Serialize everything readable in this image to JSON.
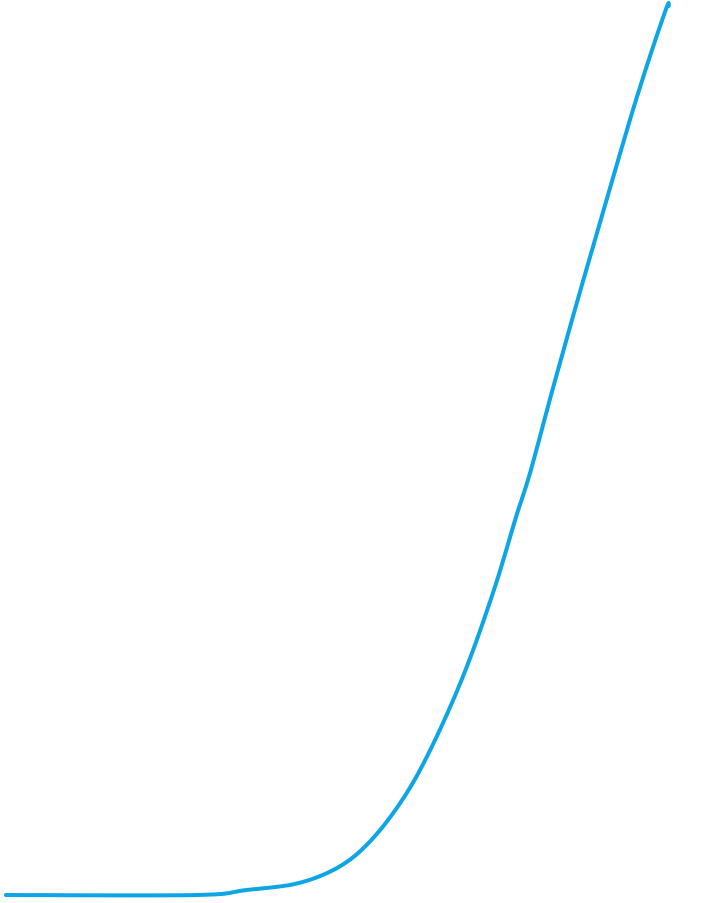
{
  "chart_data": {
    "type": "line",
    "series": [
      {
        "color": "#0da5e6",
        "points": [
          [
            0.0,
            0.0
          ],
          [
            0.275,
            0.0
          ],
          [
            0.345,
            0.0055
          ],
          [
            0.415,
            0.0122
          ],
          [
            0.465,
            0.0255
          ],
          [
            0.505,
            0.0455
          ],
          [
            0.545,
            0.0788
          ],
          [
            0.585,
            0.1244
          ],
          [
            0.625,
            0.1855
          ],
          [
            0.665,
            0.2588
          ],
          [
            0.705,
            0.3477
          ],
          [
            0.735,
            0.4255
          ],
          [
            0.755,
            0.4744
          ],
          [
            0.79,
            0.5755
          ],
          [
            0.83,
            0.6866
          ],
          [
            0.87,
            0.7944
          ],
          [
            0.91,
            0.8999
          ],
          [
            0.95,
            0.9944
          ],
          [
            0.955,
            1.0
          ]
        ]
      }
    ],
    "xlim": [
      0.0,
      1.0
    ],
    "ylim": [
      0.0,
      1.0
    ],
    "grid": false,
    "axes_visible": false
  }
}
